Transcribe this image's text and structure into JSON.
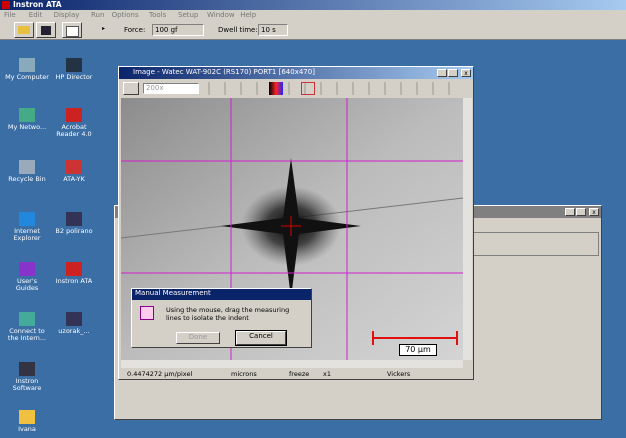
{
  "app": {
    "title": "Instron ATA",
    "menu": [
      "File",
      "Edit",
      "Display",
      "Run",
      "Options",
      "Tools",
      "Setup",
      "Window",
      "Help"
    ],
    "toolbar": {
      "force_label": "Force:",
      "force_value": "100 gf",
      "dwell_label": "Dwell time:",
      "dwell_value": "10 s"
    }
  },
  "desktop": {
    "icons": [
      {
        "label": "My Computer"
      },
      {
        "label": "HP Director"
      },
      {
        "label": "My Netwo..."
      },
      {
        "label": "Acrobat Reader 4.0"
      },
      {
        "label": "Recycle Bin"
      },
      {
        "label": "ATA-YK"
      },
      {
        "label": "Internet Explorer"
      },
      {
        "label": "B2 polirano"
      },
      {
        "label": "User's Guides"
      },
      {
        "label": "Instron ATA"
      },
      {
        "label": "Connect to the Intern..."
      },
      {
        "label": "uzorak_..."
      },
      {
        "label": "Instron Software"
      },
      {
        "label": "Ivana"
      }
    ]
  },
  "image_window": {
    "title": "Image - Watec WAT-902C (RS170) PORT1 [640x470]",
    "zoom": "200x",
    "scale_label": "70 µm",
    "status": {
      "resolution": "0.4474272 µm/pixel",
      "units": "microns",
      "freeze": "freeze",
      "magnification": "x1",
      "method": "Vickers"
    }
  },
  "dialog": {
    "title": "Manual Measurement",
    "message": "Using the mouse, drag the measuring lines to isolate the indent",
    "done": "Done",
    "cancel": "Cancel"
  }
}
